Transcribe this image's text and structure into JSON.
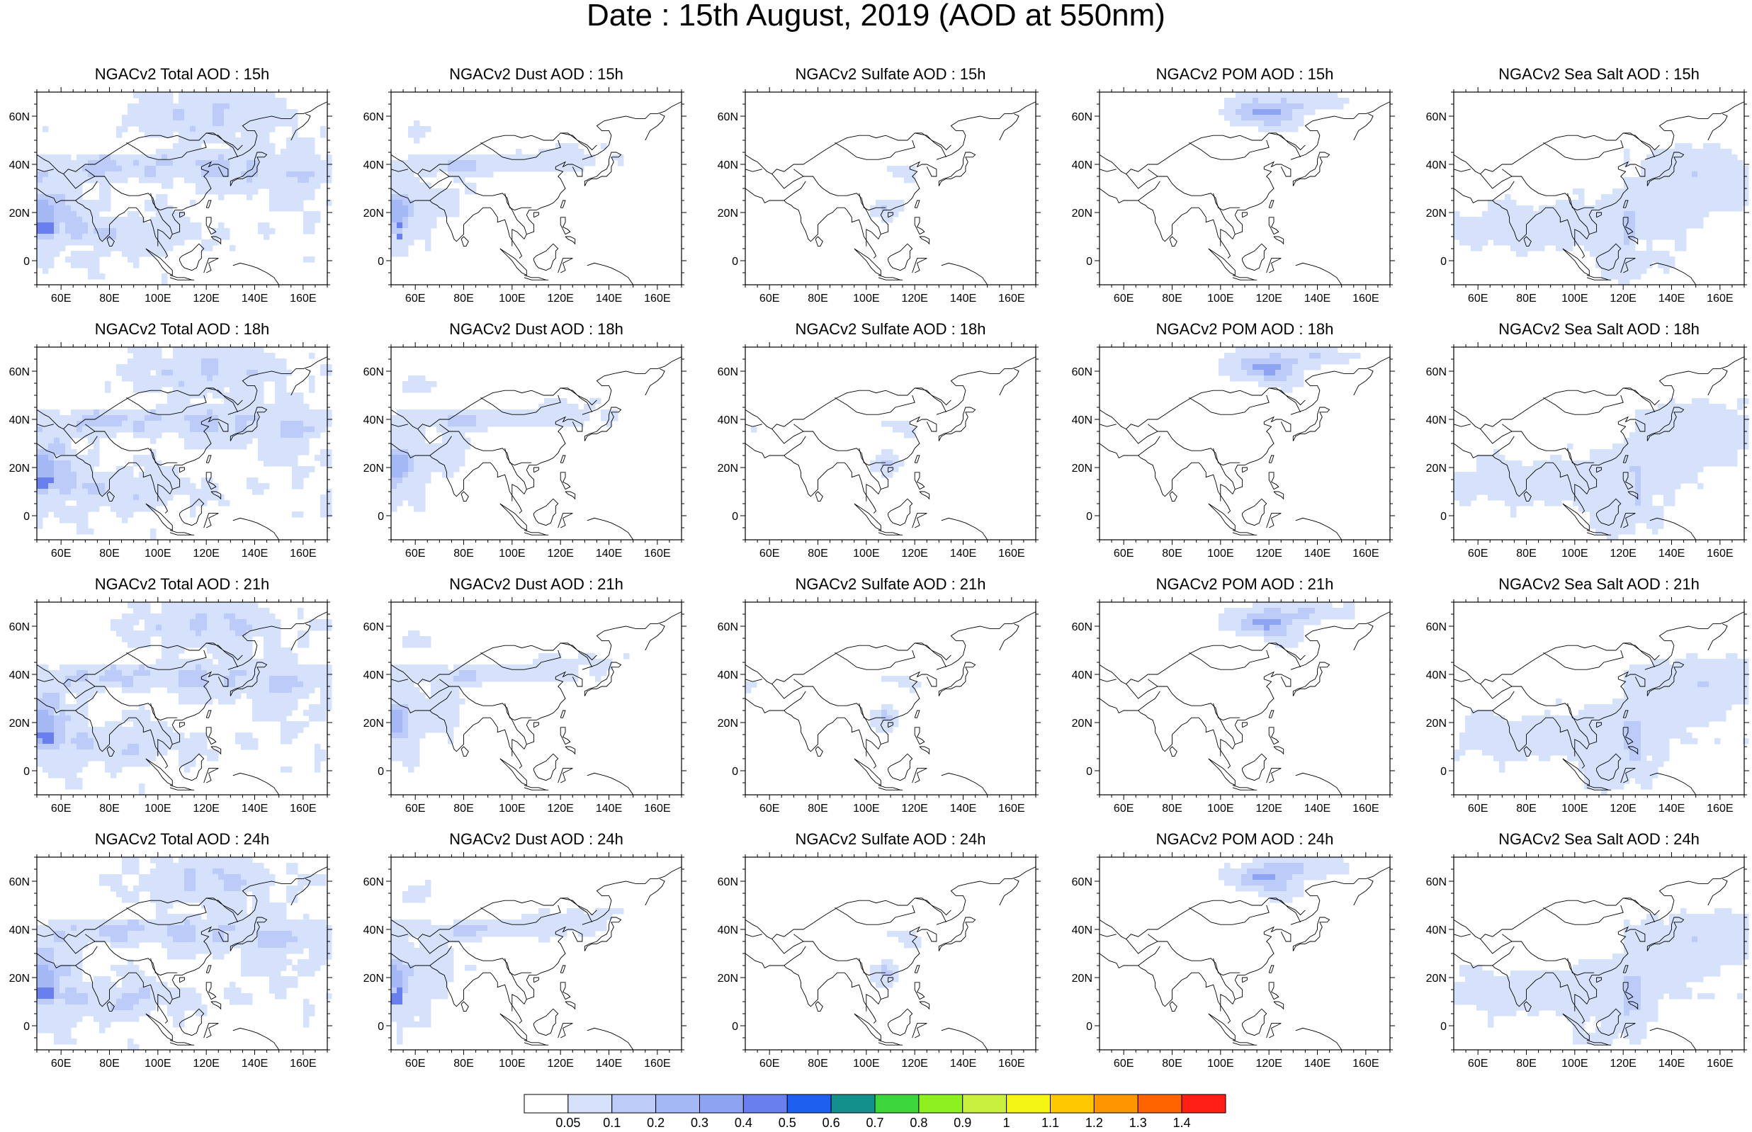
{
  "title": "Date : 15th August, 2019 (AOD at 550nm)",
  "map": {
    "lon_ticks": [
      "60E",
      "80E",
      "100E",
      "120E",
      "140E",
      "160E"
    ],
    "lat_ticks": [
      "60N",
      "40N",
      "20N",
      "0"
    ],
    "lon_range": [
      50,
      170
    ],
    "lat_range": [
      -10,
      70
    ],
    "coastline_color": "#000000"
  },
  "panels": [
    {
      "row": 0,
      "col": 0,
      "species": "total",
      "title": "NGACv2 Total AOD : 15h"
    },
    {
      "row": 0,
      "col": 1,
      "species": "dust",
      "title": "NGACv2 Dust AOD : 15h"
    },
    {
      "row": 0,
      "col": 2,
      "species": "sulfate",
      "title": "NGACv2 Sulfate AOD : 15h"
    },
    {
      "row": 0,
      "col": 3,
      "species": "pom",
      "title": "NGACv2 POM AOD : 15h"
    },
    {
      "row": 0,
      "col": 4,
      "species": "seasalt",
      "title": "NGACv2 Sea Salt AOD : 15h"
    },
    {
      "row": 1,
      "col": 0,
      "species": "total",
      "title": "NGACv2 Total AOD : 18h"
    },
    {
      "row": 1,
      "col": 1,
      "species": "dust",
      "title": "NGACv2 Dust AOD : 18h"
    },
    {
      "row": 1,
      "col": 2,
      "species": "sulfate",
      "title": "NGACv2 Sulfate AOD : 18h"
    },
    {
      "row": 1,
      "col": 3,
      "species": "pom",
      "title": "NGACv2 POM AOD : 18h"
    },
    {
      "row": 1,
      "col": 4,
      "species": "seasalt",
      "title": "NGACv2 Sea Salt AOD : 18h"
    },
    {
      "row": 2,
      "col": 0,
      "species": "total",
      "title": "NGACv2 Total AOD : 21h"
    },
    {
      "row": 2,
      "col": 1,
      "species": "dust",
      "title": "NGACv2 Dust AOD : 21h"
    },
    {
      "row": 2,
      "col": 2,
      "species": "sulfate",
      "title": "NGACv2 Sulfate AOD : 21h"
    },
    {
      "row": 2,
      "col": 3,
      "species": "pom",
      "title": "NGACv2 POM AOD : 21h"
    },
    {
      "row": 2,
      "col": 4,
      "species": "seasalt",
      "title": "NGACv2 Sea Salt AOD : 21h"
    },
    {
      "row": 3,
      "col": 0,
      "species": "total",
      "title": "NGACv2 Total AOD : 24h"
    },
    {
      "row": 3,
      "col": 1,
      "species": "dust",
      "title": "NGACv2 Dust AOD : 24h"
    },
    {
      "row": 3,
      "col": 2,
      "species": "sulfate",
      "title": "NGACv2 Sulfate AOD : 24h"
    },
    {
      "row": 3,
      "col": 3,
      "species": "pom",
      "title": "NGACv2 POM AOD : 24h"
    },
    {
      "row": 3,
      "col": 4,
      "species": "seasalt",
      "title": "NGACv2 Sea Salt  AOD : 24h"
    }
  ],
  "colorbar": {
    "labels": [
      "0.05",
      "0.1",
      "0.2",
      "0.3",
      "0.4",
      "0.5",
      "0.6",
      "0.7",
      "0.8",
      "0.9",
      "1",
      "1.1",
      "1.2",
      "1.3",
      "1.4"
    ],
    "colors": [
      "#ffffff",
      "#d6e2fb",
      "#bccbf8",
      "#a4b8f5",
      "#8ca4f2",
      "#6a7fee",
      "#1e5ff0",
      "#14908c",
      "#3cd63c",
      "#8ef01e",
      "#c8f03c",
      "#f5f514",
      "#ffc800",
      "#ff9600",
      "#ff6400",
      "#ff1e14"
    ]
  }
}
